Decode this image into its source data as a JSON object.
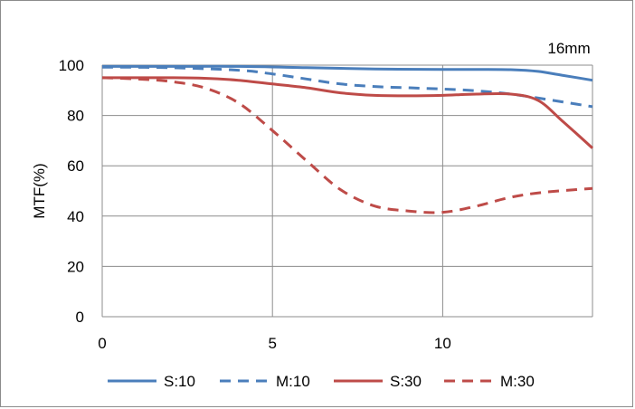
{
  "chart_data": {
    "type": "line",
    "title": "16mm",
    "xlabel": "",
    "ylabel": "MTF(%)",
    "xlim": [
      0,
      14.4
    ],
    "ylim": [
      0,
      100
    ],
    "xticks": [
      "0",
      "5",
      "10"
    ],
    "yticks": [
      "0",
      "20",
      "40",
      "60",
      "80",
      "100"
    ],
    "grid": "vertical and horizontal",
    "legend": "bottom",
    "series": [
      {
        "name": "S:10",
        "color": "#4a7ebb",
        "dash": "solid",
        "x": [
          0,
          2,
          4,
          6,
          8,
          10,
          11,
          12,
          12.8,
          13.5,
          14.4
        ],
        "y": [
          99.5,
          99.5,
          99.5,
          99,
          98.5,
          98.3,
          98.3,
          98.2,
          97.5,
          96,
          94
        ]
      },
      {
        "name": "M:10",
        "color": "#4a7ebb",
        "dash": "dashed",
        "x": [
          0,
          2,
          4,
          5,
          6,
          7,
          8,
          9,
          10,
          11,
          12,
          13,
          14.4
        ],
        "y": [
          99.2,
          99,
          98,
          96.5,
          94.5,
          92.5,
          91.5,
          91,
          90.5,
          89.8,
          88.5,
          86.5,
          83.5
        ]
      },
      {
        "name": "S:30",
        "color": "#be4b48",
        "dash": "solid",
        "x": [
          0,
          2,
          3,
          4,
          5,
          6,
          7,
          8,
          9,
          10,
          11,
          12,
          12.8,
          13.5,
          14.4
        ],
        "y": [
          95,
          95,
          94.8,
          94,
          92.5,
          91,
          89,
          88,
          87.8,
          88,
          88.5,
          88.5,
          86,
          78,
          67
        ]
      },
      {
        "name": "M:30",
        "color": "#be4b48",
        "dash": "dashed",
        "x": [
          0,
          1,
          2,
          3,
          4,
          5,
          6,
          7,
          8,
          9,
          10,
          11,
          12,
          13,
          14.4
        ],
        "y": [
          95,
          94.5,
          93.5,
          91,
          85,
          74,
          62,
          50.5,
          44,
          42,
          41.5,
          44,
          47.5,
          49.5,
          51
        ]
      }
    ]
  }
}
